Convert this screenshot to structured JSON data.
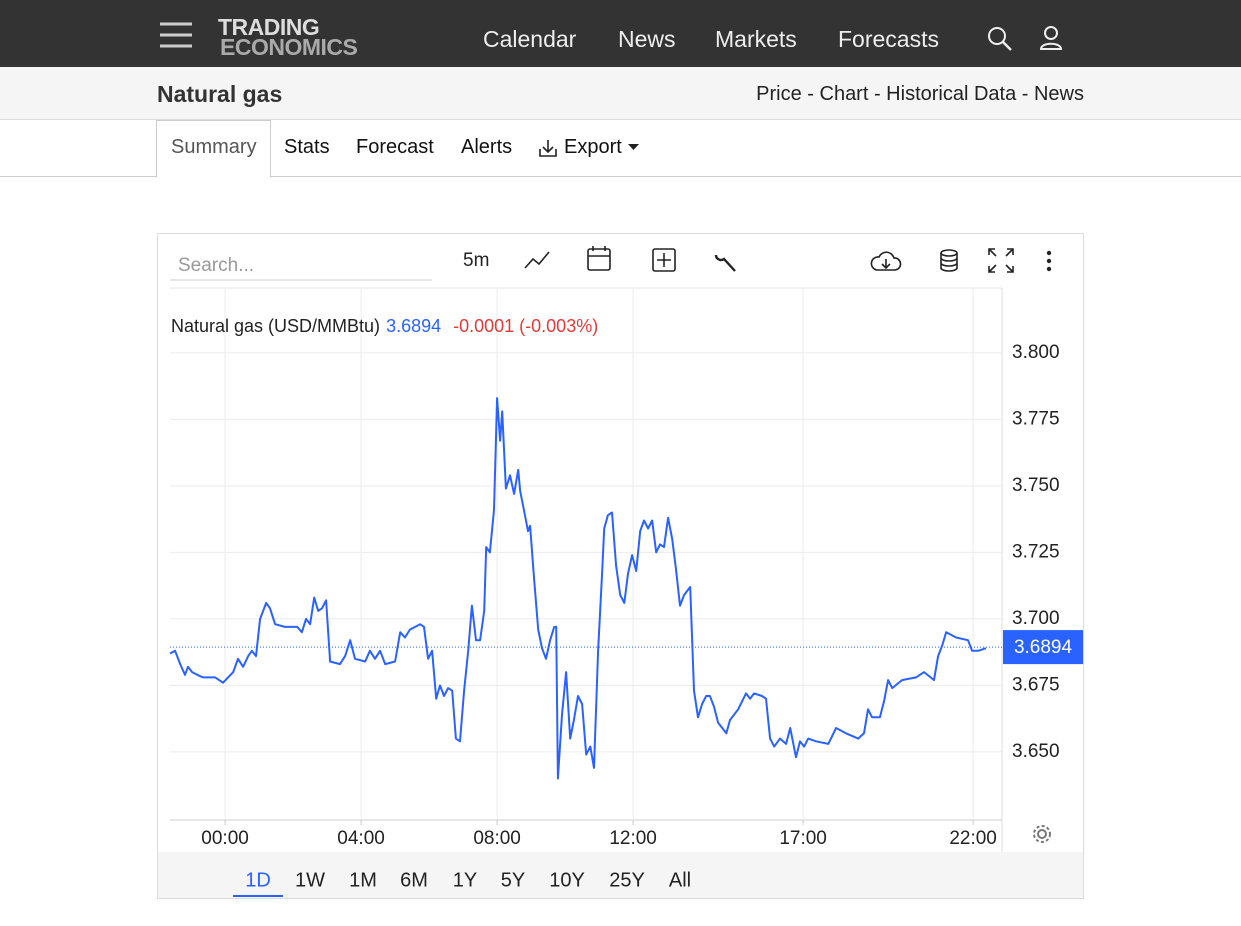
{
  "nav": {
    "logo": [
      "TRADING",
      "ECONOMICS"
    ],
    "links": [
      "Calendar",
      "News",
      "Markets",
      "Forecasts"
    ]
  },
  "subheader": {
    "title": "Natural gas",
    "links": "Price - Chart - Historical Data - News"
  },
  "tabs": {
    "items": [
      "Summary",
      "Stats",
      "Forecast",
      "Alerts",
      "Export"
    ],
    "active": "Summary"
  },
  "toolbar": {
    "search_placeholder": "Search...",
    "interval": "5m"
  },
  "chart_data": {
    "type": "line",
    "last": 3.6894,
    "change": "-0.0001 (-0.003%)",
    "x": [
      -1.62,
      -1.47,
      -1.32,
      -1.18,
      -1.09,
      -0.97,
      -0.82,
      -0.65,
      -0.29,
      -0.06,
      0.09,
      0.24,
      0.38,
      0.53,
      0.68,
      0.79,
      0.91,
      1.03,
      1.21,
      1.32,
      1.47,
      1.76,
      2.12,
      2.26,
      2.38,
      2.5,
      2.62,
      2.74,
      2.85,
      2.97,
      3.09,
      3.38,
      3.53,
      3.68,
      3.82,
      4.12,
      4.26,
      4.41,
      4.56,
      4.71,
      5.0,
      5.15,
      5.29,
      5.44,
      5.74,
      5.85,
      5.97,
      6.09,
      6.21,
      6.32,
      6.44,
      6.56,
      6.68,
      6.79,
      6.91,
      7.03,
      7.15,
      7.26,
      7.38,
      7.5,
      7.62,
      7.68,
      7.79,
      7.91,
      8.0,
      8.09,
      8.15,
      8.26,
      8.38,
      8.5,
      8.62,
      8.68,
      8.79,
      8.91,
      8.97,
      9.09,
      9.21,
      9.32,
      9.44,
      9.56,
      9.68,
      9.74,
      9.79,
      9.91,
      10.03,
      10.15,
      10.26,
      10.38,
      10.5,
      10.62,
      10.74,
      10.85,
      10.97,
      11.09,
      11.15,
      11.26,
      11.38,
      11.5,
      11.62,
      11.74,
      11.85,
      11.97,
      12.09,
      12.21,
      12.32,
      12.44,
      12.56,
      12.68,
      12.79,
      12.91,
      13.03,
      13.15,
      13.26,
      13.38,
      13.5,
      13.68,
      13.79,
      13.91,
      14.03,
      14.15,
      14.26,
      14.38,
      14.5,
      14.74,
      14.85,
      15.09,
      15.32,
      15.44,
      15.56,
      15.79,
      15.91,
      16.03,
      16.15,
      16.32,
      16.5,
      16.62,
      16.79,
      16.91,
      17.03,
      17.15,
      17.38,
      17.74,
      17.97,
      18.26,
      18.62,
      18.79,
      18.91,
      19.03,
      19.26,
      19.38,
      19.5,
      19.62,
      19.91,
      20.32,
      20.56,
      20.85,
      20.97,
      21.09,
      21.21,
      21.5,
      21.85,
      21.97,
      22.15,
      22.38
    ],
    "series": [
      {
        "name": "Natural gas (USD/MMBtu)",
        "color": "#2962ff",
        "values": [
          3.687,
          3.688,
          3.683,
          3.679,
          3.682,
          3.68,
          3.679,
          3.678,
          3.678,
          3.676,
          3.678,
          3.68,
          3.685,
          3.682,
          3.686,
          3.688,
          3.686,
          3.7,
          3.706,
          3.704,
          3.698,
          3.697,
          3.697,
          3.695,
          3.7,
          3.698,
          3.708,
          3.703,
          3.704,
          3.707,
          3.684,
          3.683,
          3.686,
          3.692,
          3.685,
          3.684,
          3.688,
          3.685,
          3.688,
          3.683,
          3.684,
          3.695,
          3.693,
          3.696,
          3.698,
          3.697,
          3.685,
          3.688,
          3.67,
          3.675,
          3.671,
          3.674,
          3.673,
          3.655,
          3.654,
          3.673,
          3.688,
          3.705,
          3.692,
          3.692,
          3.703,
          3.727,
          3.725,
          3.741,
          3.783,
          3.767,
          3.778,
          3.749,
          3.754,
          3.747,
          3.756,
          3.748,
          3.741,
          3.733,
          3.735,
          3.715,
          3.696,
          3.689,
          3.685,
          3.692,
          3.697,
          3.697,
          3.64,
          3.664,
          3.68,
          3.655,
          3.662,
          3.671,
          3.668,
          3.649,
          3.652,
          3.644,
          3.688,
          3.718,
          3.734,
          3.739,
          3.74,
          3.72,
          3.709,
          3.706,
          3.717,
          3.724,
          3.718,
          3.733,
          3.737,
          3.734,
          3.737,
          3.725,
          3.728,
          3.727,
          3.738,
          3.73,
          3.719,
          3.705,
          3.709,
          3.712,
          3.673,
          3.663,
          3.668,
          3.671,
          3.671,
          3.667,
          3.661,
          3.657,
          3.662,
          3.666,
          3.672,
          3.67,
          3.672,
          3.671,
          3.67,
          3.655,
          3.652,
          3.655,
          3.653,
          3.659,
          3.648,
          3.654,
          3.652,
          3.655,
          3.654,
          3.653,
          3.659,
          3.657,
          3.655,
          3.657,
          3.666,
          3.663,
          3.663,
          3.669,
          3.677,
          3.674,
          3.677,
          3.678,
          3.68,
          3.677,
          3.686,
          3.69,
          3.695,
          3.693,
          3.692,
          3.688,
          3.688,
          3.689
        ]
      }
    ],
    "xlim": [
      -1.62,
      22.85
    ],
    "xticks": [
      {
        "value": 0,
        "label": "00:00"
      },
      {
        "value": 4,
        "label": "04:00"
      },
      {
        "value": 8,
        "label": "08:00"
      },
      {
        "value": 12,
        "label": "12:00"
      },
      {
        "value": 17,
        "label": "17:00"
      },
      {
        "value": 22,
        "label": "22:00"
      }
    ],
    "ylim": [
      3.6244,
      3.8244
    ],
    "yticks": [
      {
        "value": 3.65,
        "label": "3.650"
      },
      3.675,
      {
        "value": 3.7,
        "label": "3.700"
      },
      3.725,
      {
        "value": 3.75,
        "label": "3.750"
      },
      3.775,
      {
        "value": 3.8,
        "label": "3.800"
      }
    ],
    "grid": true
  },
  "ranges": {
    "items": [
      "1D",
      "1W",
      "1M",
      "6M",
      "1Y",
      "5Y",
      "10Y",
      "25Y",
      "All"
    ],
    "active": "1D"
  }
}
